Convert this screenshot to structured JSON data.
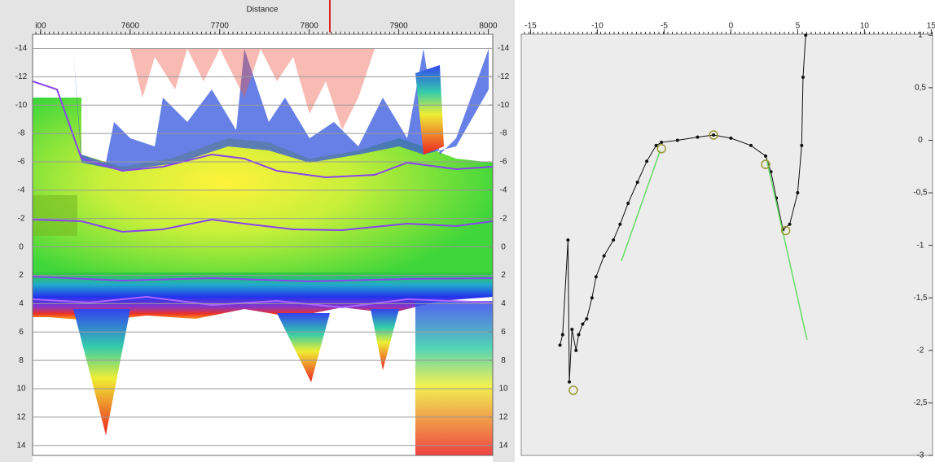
{
  "chart_data": [
    {
      "type": "image",
      "x_label": "Distance",
      "xlim": [
        7491,
        8005
      ],
      "xticks": [
        {
          "value": 7500,
          "label": "i00"
        },
        7600,
        7700,
        7800,
        7900,
        8000
      ],
      "ylim": [
        -15,
        14.7
      ],
      "y_reversed": true,
      "yticks": [
        -14,
        -12,
        -10,
        -8,
        -6,
        -4,
        -2,
        0,
        2,
        4,
        6,
        8,
        10,
        12,
        14
      ],
      "grid": true
    },
    {
      "type": "line",
      "xlim": [
        -15.7,
        15.1
      ],
      "xticks": [
        -15,
        -10,
        -5,
        0,
        5,
        10,
        15
      ],
      "ylim": [
        -3,
        1.01
      ],
      "yticks": [
        1,
        {
          "value": 0.5,
          "label": "0,5"
        },
        0,
        {
          "value": -0.5,
          "label": "-0,5"
        },
        -1,
        {
          "value": -1.5,
          "label": "-1,5"
        },
        -2,
        {
          "value": -2.5,
          "label": "-2,5"
        },
        -3
      ],
      "grid": false,
      "series": [
        {
          "color": "#111111",
          "markers": true,
          "x": [
            -12.8,
            -12.6,
            -12.2,
            -12.1,
            -11.9,
            -11.6,
            -11.4,
            -11.1,
            -10.8,
            -10.4,
            -10.1,
            -9.5,
            -8.8,
            -8.3,
            -7.7,
            -7.0,
            -6.3,
            -5.6,
            -5.2,
            -4.0,
            -2.5,
            -1.3,
            0,
            1.5,
            2.6,
            3.0,
            3.4,
            3.9,
            4.4,
            5.0,
            5.3,
            5.4,
            5.6
          ],
          "values": [
            -1.95,
            -1.85,
            -0.95,
            -2.3,
            -1.8,
            -2.0,
            -1.85,
            -1.75,
            -1.7,
            -1.5,
            -1.3,
            -1.1,
            -0.95,
            -0.8,
            -0.6,
            -0.4,
            -0.2,
            -0.05,
            -0.02,
            0,
            0.03,
            0.05,
            0.02,
            -0.05,
            -0.15,
            -0.3,
            -0.55,
            -0.85,
            -0.8,
            -0.5,
            -0.05,
            0.6,
            1.0
          ]
        },
        {
          "color": "#66dd66",
          "x": [
            -8.2,
            -5.3
          ],
          "values": [
            -1.15,
            -0.1
          ]
        },
        {
          "color": "#66dd66",
          "x": [
            2.7,
            5.7
          ],
          "values": [
            -0.2,
            -1.9
          ]
        },
        {
          "color": "#999933",
          "circles": true,
          "x": [
            -11.8,
            -5.2,
            -1.3,
            2.6,
            4.1
          ],
          "values": [
            -2.38,
            -0.08,
            0.05,
            -0.23,
            -0.86
          ]
        }
      ]
    }
  ]
}
